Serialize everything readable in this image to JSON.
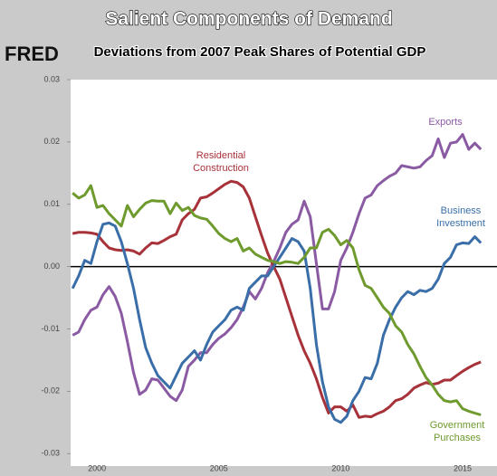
{
  "chart_data": {
    "type": "line",
    "title": "Salient Components of Demand",
    "subtitle": "Deviations from 2007 Peak Shares of Potential GDP",
    "logo": "FRED",
    "x": [
      1999,
      1999.25,
      1999.5,
      1999.75,
      2000,
      2000.25,
      2000.5,
      2000.75,
      2001,
      2001.25,
      2001.5,
      2001.75,
      2002,
      2002.25,
      2002.5,
      2002.75,
      2003,
      2003.25,
      2003.5,
      2003.75,
      2004,
      2004.25,
      2004.5,
      2004.75,
      2005,
      2005.25,
      2005.5,
      2005.75,
      2006,
      2006.25,
      2006.5,
      2006.75,
      2007,
      2007.25,
      2007.5,
      2007.75,
      2008,
      2008.25,
      2008.5,
      2008.75,
      2009,
      2009.25,
      2009.5,
      2009.75,
      2010,
      2010.25,
      2010.5,
      2010.75,
      2011,
      2011.25,
      2011.5,
      2011.75,
      2012,
      2012.25,
      2012.5,
      2012.75,
      2013,
      2013.25,
      2013.5,
      2013.75,
      2014,
      2014.25,
      2014.5,
      2014.75,
      2015,
      2015.25,
      2015.5,
      2015.75
    ],
    "series": [
      {
        "name": "Exports",
        "color": "#8a5aa3",
        "values": [
          -0.011,
          -0.0105,
          -0.0085,
          -0.007,
          -0.0065,
          -0.0045,
          -0.0032,
          -0.0048,
          -0.0075,
          -0.012,
          -0.017,
          -0.0205,
          -0.0198,
          -0.018,
          -0.0182,
          -0.0195,
          -0.0208,
          -0.0215,
          -0.0198,
          -0.016,
          -0.015,
          -0.0138,
          -0.0138,
          -0.0125,
          -0.0115,
          -0.0108,
          -0.0098,
          -0.0085,
          -0.0065,
          -0.004,
          -0.0052,
          -0.0035,
          -0.001,
          0.0008,
          0.003,
          0.0055,
          0.0068,
          0.0075,
          0.0105,
          0.008,
          0.0005,
          -0.0068,
          -0.0068,
          -0.004,
          0.001,
          0.003,
          0.0055,
          0.0085,
          0.011,
          0.0115,
          0.013,
          0.0138,
          0.0145,
          0.015,
          0.0162,
          0.016,
          0.0158,
          0.016,
          0.017,
          0.0178,
          0.0205,
          0.0175,
          0.0198,
          0.02,
          0.0212,
          0.0188,
          0.0198,
          0.0188
        ]
      },
      {
        "name": "Residential Construction",
        "color": "#a8323a",
        "values": [
          0.0053,
          0.0055,
          0.0055,
          0.0054,
          0.0052,
          0.004,
          0.003,
          0.0027,
          0.0026,
          0.0027,
          0.0025,
          0.002,
          0.003,
          0.0038,
          0.0037,
          0.0042,
          0.0048,
          0.0052,
          0.0075,
          0.0085,
          0.0092,
          0.011,
          0.0112,
          0.0118,
          0.0125,
          0.0132,
          0.0137,
          0.0135,
          0.0128,
          0.011,
          0.008,
          0.005,
          0.0022,
          0.0,
          -0.002,
          -0.005,
          -0.008,
          -0.011,
          -0.0135,
          -0.0155,
          -0.018,
          -0.021,
          -0.0235,
          -0.0225,
          -0.0225,
          -0.0232,
          -0.0222,
          -0.0242,
          -0.024,
          -0.0241,
          -0.0236,
          -0.0232,
          -0.0225,
          -0.0215,
          -0.0212,
          -0.0205,
          -0.0195,
          -0.019,
          -0.0186,
          -0.0189,
          -0.0187,
          -0.0182,
          -0.0182,
          -0.0175,
          -0.0168,
          -0.0162,
          -0.0157,
          -0.0153
        ]
      },
      {
        "name": "Business Investment",
        "color": "#3a6ea8",
        "values": [
          -0.0035,
          -0.0015,
          0.001,
          0.0005,
          0.004,
          0.0068,
          0.007,
          0.0065,
          0.004,
          0.0005,
          -0.0035,
          -0.0085,
          -0.013,
          -0.0155,
          -0.0175,
          -0.0185,
          -0.0195,
          -0.0175,
          -0.0155,
          -0.0145,
          -0.0135,
          -0.015,
          -0.0125,
          -0.0105,
          -0.0095,
          -0.0085,
          -0.007,
          -0.0065,
          -0.007,
          -0.0035,
          -0.0025,
          -0.0015,
          -0.0015,
          0.0,
          0.0015,
          0.003,
          0.0045,
          0.004,
          0.0025,
          -0.0035,
          -0.0125,
          -0.0185,
          -0.0225,
          -0.0245,
          -0.025,
          -0.024,
          -0.0215,
          -0.02,
          -0.0178,
          -0.018,
          -0.0155,
          -0.011,
          -0.0085,
          -0.0065,
          -0.005,
          -0.004,
          -0.0045,
          -0.0038,
          -0.004,
          -0.0035,
          -0.002,
          0.0005,
          0.0015,
          0.0035,
          0.0038,
          0.0037,
          0.0048,
          0.0038
        ]
      },
      {
        "name": "Government Purchases",
        "color": "#6e9a2e",
        "values": [
          0.0118,
          0.011,
          0.0115,
          0.013,
          0.0095,
          0.0098,
          0.0085,
          0.0075,
          0.0065,
          0.0098,
          0.008,
          0.0092,
          0.0102,
          0.0106,
          0.0105,
          0.0105,
          0.0085,
          0.0102,
          0.009,
          0.0095,
          0.0082,
          0.0078,
          0.0076,
          0.0065,
          0.0053,
          0.0045,
          0.004,
          0.0045,
          0.0025,
          0.003,
          0.002,
          0.0015,
          0.001,
          0.0008,
          0.0005,
          0.0008,
          0.0007,
          0.0005,
          0.0015,
          0.003,
          0.003,
          0.0055,
          0.006,
          0.005,
          0.0035,
          0.0042,
          0.003,
          -0.0005,
          -0.003,
          -0.0035,
          -0.005,
          -0.0065,
          -0.0075,
          -0.0095,
          -0.0105,
          -0.0125,
          -0.014,
          -0.016,
          -0.0178,
          -0.019,
          -0.0205,
          -0.0215,
          -0.0217,
          -0.0215,
          -0.0228,
          -0.0232,
          -0.0235,
          -0.0238
        ]
      }
    ],
    "xlim": [
      1998.92,
      2016.41
    ],
    "xticks": [
      2000,
      2005,
      2010,
      2015
    ],
    "ylim": [
      -0.032,
      0.03
    ],
    "yticks": [
      0.03,
      0.02,
      0.01,
      {
        "value": 0,
        "label": "0.00"
      },
      -0.01,
      -0.02,
      -0.03
    ],
    "zero_line": true,
    "grid": false
  }
}
